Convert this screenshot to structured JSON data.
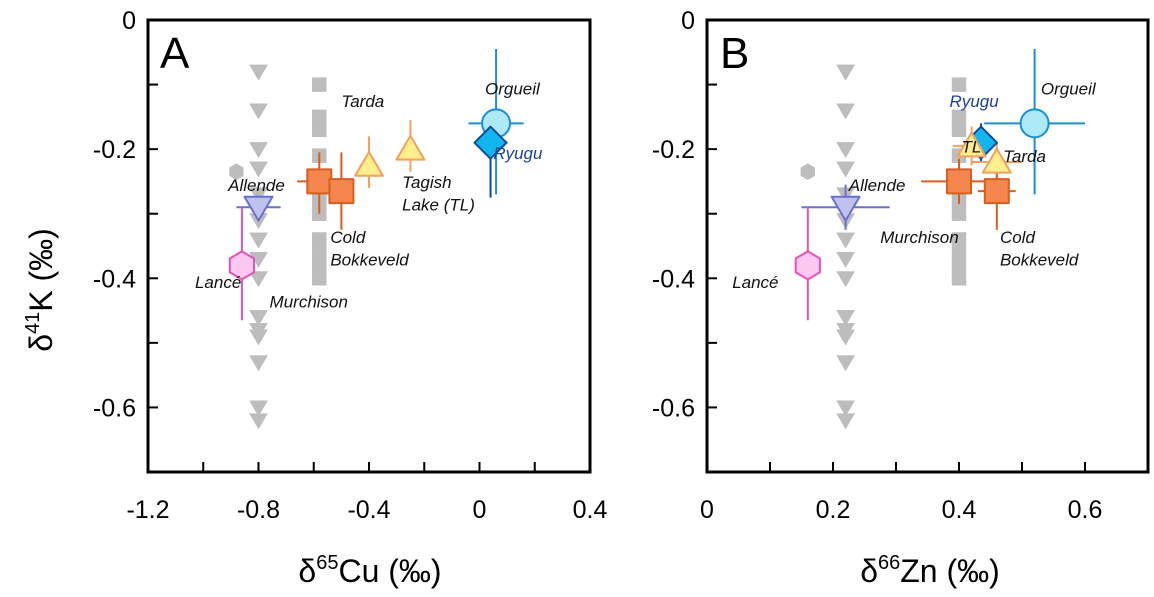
{
  "chart_data": [
    {
      "panel": "A",
      "type": "scatter",
      "xlabel_base": "δ",
      "xlabel_sup": "65",
      "xlabel_tail": "Cu (‰)",
      "ylabel_base": "δ",
      "ylabel_sup": "41",
      "ylabel_tail": "K (‰)",
      "xlim": [
        -1.2,
        0.4
      ],
      "ylim": [
        -0.7,
        0.0
      ],
      "xticks": [
        "-1.2",
        "-0.8",
        "-0.4",
        "0",
        "0.4"
      ],
      "xtick_values": [
        -1.2,
        -0.8,
        -0.4,
        0,
        0.4
      ],
      "yticks": [
        "0",
        "-0.2",
        "-0.4",
        "-0.6"
      ],
      "ytick_values": [
        0,
        -0.2,
        -0.4,
        -0.6
      ],
      "background_points": [
        {
          "shape": "hexagon",
          "x": -0.88,
          "y": -0.235
        },
        {
          "shape": "triangle-down",
          "x": -0.8,
          "y": -0.08
        },
        {
          "shape": "triangle-down",
          "x": -0.8,
          "y": -0.14
        },
        {
          "shape": "triangle-down",
          "x": -0.8,
          "y": -0.2
        },
        {
          "shape": "triangle-down",
          "x": -0.8,
          "y": -0.23
        },
        {
          "shape": "triangle-down",
          "x": -0.8,
          "y": -0.27
        },
        {
          "shape": "triangle-down",
          "x": -0.8,
          "y": -0.31
        },
        {
          "shape": "triangle-down",
          "x": -0.8,
          "y": -0.34
        },
        {
          "shape": "triangle-down",
          "x": -0.8,
          "y": -0.37
        },
        {
          "shape": "triangle-down",
          "x": -0.8,
          "y": -0.4
        },
        {
          "shape": "triangle-down",
          "x": -0.8,
          "y": -0.46
        },
        {
          "shape": "triangle-down",
          "x": -0.8,
          "y": -0.48
        },
        {
          "shape": "triangle-down",
          "x": -0.8,
          "y": -0.49
        },
        {
          "shape": "triangle-down",
          "x": -0.8,
          "y": -0.53
        },
        {
          "shape": "triangle-down",
          "x": -0.8,
          "y": -0.6
        },
        {
          "shape": "triangle-down",
          "x": -0.8,
          "y": -0.62
        },
        {
          "shape": "square",
          "x": -0.58,
          "y": -0.1
        },
        {
          "shape": "square",
          "x": -0.58,
          "y": -0.15
        },
        {
          "shape": "square",
          "x": -0.58,
          "y": -0.17
        },
        {
          "shape": "square",
          "x": -0.58,
          "y": -0.21
        },
        {
          "shape": "square",
          "x": -0.58,
          "y": -0.28
        },
        {
          "shape": "square",
          "x": -0.58,
          "y": -0.3
        },
        {
          "shape": "square",
          "x": -0.58,
          "y": -0.34
        },
        {
          "shape": "square",
          "x": -0.58,
          "y": -0.36
        },
        {
          "shape": "square",
          "x": -0.58,
          "y": -0.38
        },
        {
          "shape": "square",
          "x": -0.58,
          "y": -0.4
        }
      ],
      "samples": [
        {
          "name": "Orgueil",
          "shape": "circle",
          "fill": "#aee9f7",
          "stroke": "#1a8fd8",
          "x": 0.06,
          "y": -0.16,
          "xerr": 0.1,
          "yerr_up": 0.115,
          "yerr_down": 0.11
        },
        {
          "name": "Ryugu",
          "shape": "diamond",
          "fill": "#11b6ee",
          "stroke": "#0b4aa0",
          "x": 0.04,
          "y": -0.19,
          "xerr": 0.06,
          "yerr_up": 0.04,
          "yerr_down": 0.085
        },
        {
          "name": "Tarda",
          "shape": "triangle-up",
          "fill": "#ffee8c",
          "stroke": "#f2a05b",
          "x": -0.4,
          "y": -0.225,
          "xerr": 0,
          "yerr_up": 0.045,
          "yerr_down": 0.035
        },
        {
          "name": "Tagish Lake (TL)",
          "shape": "triangle-up",
          "fill": "#ffee8c",
          "stroke": "#f2a05b",
          "x": -0.25,
          "y": -0.2,
          "xerr": 0,
          "yerr_up": 0.045,
          "yerr_down": 0.035
        },
        {
          "name": "Murchison",
          "shape": "square",
          "fill": "#f5874e",
          "stroke": "#d65e1f",
          "x": -0.58,
          "y": -0.25,
          "xerr": 0.08,
          "yerr_up": 0.045,
          "yerr_down": 0.05
        },
        {
          "name": "Cold Bokkeveld",
          "shape": "square",
          "fill": "#f5874e",
          "stroke": "#d65e1f",
          "x": -0.5,
          "y": -0.265,
          "xerr": 0,
          "yerr_up": 0.06,
          "yerr_down": 0.06
        },
        {
          "name": "Allende",
          "shape": "triangle-down",
          "fill": "#c0c2ee",
          "stroke": "#6b6fd0",
          "x": -0.8,
          "y": -0.29,
          "xerr": 0.08,
          "yerr_up": 0,
          "yerr_down": 0
        },
        {
          "name": "Lancé",
          "shape": "hexagon",
          "fill": "#fcc8ef",
          "stroke": "#e254b8",
          "x": -0.86,
          "y": -0.38,
          "xerr": 0,
          "yerr_up": 0.09,
          "yerr_down": 0.085
        }
      ],
      "annotations": [
        {
          "text": "Orgueil",
          "x": 0.02,
          "y": -0.115,
          "color": "dark"
        },
        {
          "text": "Ryugu",
          "x": 0.05,
          "y": -0.215,
          "color": "blue"
        },
        {
          "text": "Tarda",
          "x": -0.5,
          "y": -0.135,
          "color": "dark"
        },
        {
          "text": "Tagish",
          "x": -0.28,
          "y": -0.26,
          "color": "dark"
        },
        {
          "text": "Lake (TL)",
          "x": -0.28,
          "y": -0.295,
          "color": "dark"
        },
        {
          "text": "Allende",
          "x": -0.91,
          "y": -0.265,
          "color": "dark"
        },
        {
          "text": "Cold",
          "x": -0.54,
          "y": -0.345,
          "color": "dark"
        },
        {
          "text": "Bokkeveld",
          "x": -0.54,
          "y": -0.38,
          "color": "dark"
        },
        {
          "text": "Lancé",
          "x": -1.03,
          "y": -0.415,
          "color": "dark"
        },
        {
          "text": "Murchison",
          "x": -0.76,
          "y": -0.445,
          "color": "dark"
        }
      ]
    },
    {
      "panel": "B",
      "type": "scatter",
      "xlabel_base": "δ",
      "xlabel_sup": "66",
      "xlabel_tail": "Zn (‰)",
      "xlim": [
        0,
        0.7
      ],
      "ylim": [
        -0.7,
        0.0
      ],
      "xticks": [
        "0",
        "0.2",
        "0.4",
        "0.6"
      ],
      "xtick_values": [
        0,
        0.2,
        0.4,
        0.6
      ],
      "yticks": [
        "0",
        "-0.2",
        "-0.4",
        "-0.6"
      ],
      "ytick_values": [
        0,
        -0.2,
        -0.4,
        -0.6
      ],
      "background_points": [
        {
          "shape": "hexagon",
          "x": 0.16,
          "y": -0.235
        },
        {
          "shape": "triangle-down",
          "x": 0.22,
          "y": -0.08
        },
        {
          "shape": "triangle-down",
          "x": 0.22,
          "y": -0.14
        },
        {
          "shape": "triangle-down",
          "x": 0.22,
          "y": -0.2
        },
        {
          "shape": "triangle-down",
          "x": 0.22,
          "y": -0.23
        },
        {
          "shape": "triangle-down",
          "x": 0.22,
          "y": -0.27
        },
        {
          "shape": "triangle-down",
          "x": 0.22,
          "y": -0.31
        },
        {
          "shape": "triangle-down",
          "x": 0.22,
          "y": -0.34
        },
        {
          "shape": "triangle-down",
          "x": 0.22,
          "y": -0.37
        },
        {
          "shape": "triangle-down",
          "x": 0.22,
          "y": -0.4
        },
        {
          "shape": "triangle-down",
          "x": 0.22,
          "y": -0.46
        },
        {
          "shape": "triangle-down",
          "x": 0.22,
          "y": -0.48
        },
        {
          "shape": "triangle-down",
          "x": 0.22,
          "y": -0.49
        },
        {
          "shape": "triangle-down",
          "x": 0.22,
          "y": -0.53
        },
        {
          "shape": "triangle-down",
          "x": 0.22,
          "y": -0.6
        },
        {
          "shape": "triangle-down",
          "x": 0.22,
          "y": -0.62
        },
        {
          "shape": "square",
          "x": 0.4,
          "y": -0.1
        },
        {
          "shape": "square",
          "x": 0.4,
          "y": -0.15
        },
        {
          "shape": "square",
          "x": 0.4,
          "y": -0.17
        },
        {
          "shape": "square",
          "x": 0.4,
          "y": -0.21
        },
        {
          "shape": "square",
          "x": 0.4,
          "y": -0.28
        },
        {
          "shape": "square",
          "x": 0.4,
          "y": -0.3
        },
        {
          "shape": "square",
          "x": 0.4,
          "y": -0.34
        },
        {
          "shape": "square",
          "x": 0.4,
          "y": -0.36
        },
        {
          "shape": "square",
          "x": 0.4,
          "y": -0.38
        },
        {
          "shape": "square",
          "x": 0.4,
          "y": -0.4
        }
      ],
      "samples": [
        {
          "name": "Orgueil",
          "shape": "circle",
          "fill": "#aee9f7",
          "stroke": "#1a8fd8",
          "x": 0.52,
          "y": -0.16,
          "xerr": 0.08,
          "yerr_up": 0.115,
          "yerr_down": 0.11
        },
        {
          "name": "Ryugu",
          "shape": "diamond",
          "fill": "#11b6ee",
          "stroke": "#0b4aa0",
          "x": 0.435,
          "y": -0.19,
          "xerr": 0.02,
          "yerr_up": 0.03,
          "yerr_down": 0.03
        },
        {
          "name": "Tagish Lake (TL)",
          "shape": "triangle-up",
          "fill": "#ffee8c",
          "stroke": "#f2a05b",
          "x": 0.42,
          "y": -0.195,
          "xerr": 0.03,
          "yerr_up": 0.03,
          "yerr_down": 0.03
        },
        {
          "name": "Tarda",
          "shape": "triangle-up",
          "fill": "#ffee8c",
          "stroke": "#f2a05b",
          "x": 0.46,
          "y": -0.22,
          "xerr": 0.04,
          "yerr_up": 0.03,
          "yerr_down": 0.03
        },
        {
          "name": "Murchison",
          "shape": "square",
          "fill": "#f5874e",
          "stroke": "#d65e1f",
          "x": 0.4,
          "y": -0.25,
          "xerr": 0.06,
          "yerr_up": 0.035,
          "yerr_down": 0.035
        },
        {
          "name": "Cold Bokkeveld",
          "shape": "square",
          "fill": "#f5874e",
          "stroke": "#d65e1f",
          "x": 0.46,
          "y": -0.265,
          "xerr": 0.03,
          "yerr_up": 0.06,
          "yerr_down": 0.06
        },
        {
          "name": "Allende",
          "shape": "triangle-down",
          "fill": "#c0c2ee",
          "stroke": "#6b6fd0",
          "x": 0.22,
          "y": -0.29,
          "xerr": 0.07,
          "yerr_up": 0.035,
          "yerr_down": 0.035
        },
        {
          "name": "Lancé",
          "shape": "hexagon",
          "fill": "#fcc8ef",
          "stroke": "#e254b8",
          "x": 0.16,
          "y": -0.38,
          "xerr": 0,
          "yerr_up": 0.09,
          "yerr_down": 0.085
        }
      ],
      "annotations": [
        {
          "text": "Orgueil",
          "x": 0.53,
          "y": -0.115,
          "color": "dark"
        },
        {
          "text": "Ryugu",
          "x": 0.385,
          "y": -0.135,
          "color": "blue"
        },
        {
          "text": "TL",
          "x": 0.404,
          "y": -0.205,
          "color": "dark"
        },
        {
          "text": "Tarda",
          "x": 0.47,
          "y": -0.22,
          "color": "dark"
        },
        {
          "text": "Allende",
          "x": 0.225,
          "y": -0.265,
          "color": "dark"
        },
        {
          "text": "Murchison",
          "x": 0.275,
          "y": -0.345,
          "color": "dark"
        },
        {
          "text": "Cold",
          "x": 0.465,
          "y": -0.345,
          "color": "dark"
        },
        {
          "text": "Bokkeveld",
          "x": 0.465,
          "y": -0.38,
          "color": "dark"
        },
        {
          "text": "Lancé",
          "x": 0.04,
          "y": -0.415,
          "color": "dark"
        }
      ]
    }
  ]
}
